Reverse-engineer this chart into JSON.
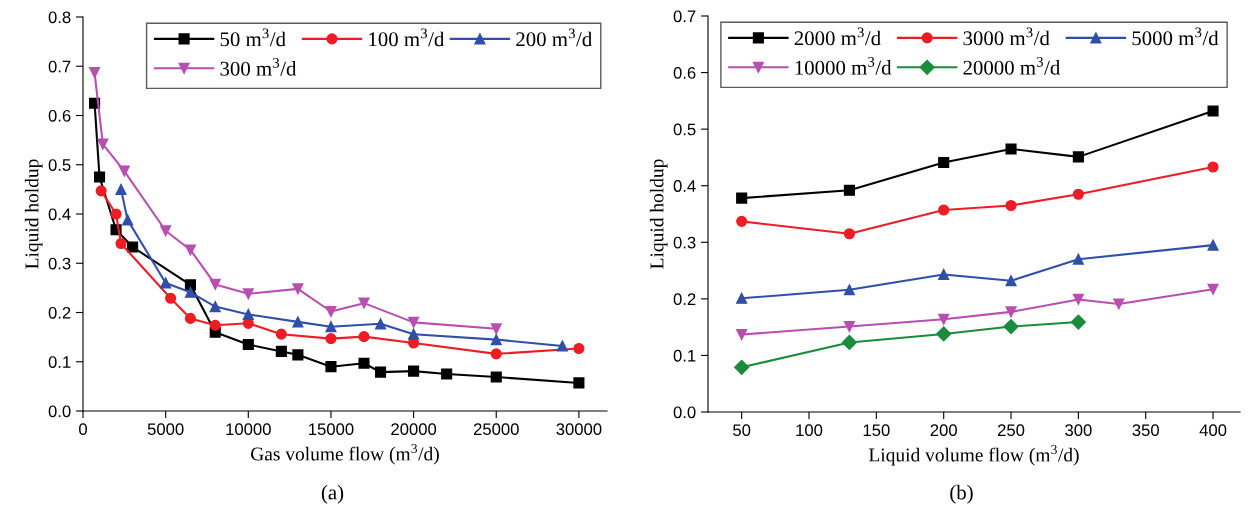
{
  "chart_data": [
    {
      "type": "line",
      "xlabel": "Gas volume flow (m$^{3}$/d)",
      "ylabel": "Liquid holdup",
      "xlim": [
        0,
        31700
      ],
      "xticks": [
        0,
        5000,
        10000,
        15000,
        20000,
        25000,
        30000
      ],
      "ylim": [
        0,
        0.8
      ],
      "yticks": [
        {
          "value": 0,
          "label": "0.0"
        },
        0.1,
        0.2,
        0.3,
        0.4,
        0.5,
        0.6,
        0.7,
        0.8
      ],
      "grid": false,
      "legend": "top right",
      "line_style": "solid",
      "annotations": [
        "(a)"
      ],
      "series": [
        {
          "name": "50 m$^{3}$/d",
          "color": "#000000",
          "marker": "square",
          "x": [
            700,
            1000,
            2000,
            3000,
            6500,
            8000,
            10000,
            12000,
            13000,
            15000,
            17000,
            18000,
            20000,
            22000,
            25000,
            30000
          ],
          "values": [
            0.625,
            0.475,
            0.368,
            0.333,
            0.256,
            0.16,
            0.135,
            0.121,
            0.114,
            0.09,
            0.097,
            0.079,
            0.081,
            0.075,
            0.069,
            0.057
          ]
        },
        {
          "name": "100 m$^{3}$/d",
          "color": "#ee1c25",
          "marker": "circle",
          "x": [
            1100,
            2000,
            2300,
            5300,
            6500,
            8000,
            10000,
            12000,
            15000,
            17000,
            20000,
            25000,
            30000
          ],
          "values": [
            0.447,
            0.4,
            0.34,
            0.229,
            0.188,
            0.174,
            0.178,
            0.156,
            0.147,
            0.151,
            0.138,
            0.116,
            0.127
          ]
        },
        {
          "name": "200 m$^{3}$/d",
          "color": "#3050a8",
          "marker": "triangle",
          "x": [
            2300,
            2700,
            5000,
            6500,
            8000,
            10000,
            13000,
            15000,
            18000,
            20000,
            25000,
            29000
          ],
          "values": [
            0.45,
            0.388,
            0.26,
            0.241,
            0.212,
            0.196,
            0.181,
            0.171,
            0.177,
            0.156,
            0.145,
            0.132
          ]
        },
        {
          "name": "300 m$^{3}$/d",
          "color": "#b84fb0",
          "marker": "triangle_down",
          "x": [
            700,
            1200,
            2500,
            5000,
            6500,
            8000,
            10000,
            13000,
            15000,
            17000,
            20000,
            25000
          ],
          "values": [
            0.687,
            0.542,
            0.487,
            0.366,
            0.327,
            0.257,
            0.238,
            0.248,
            0.202,
            0.219,
            0.18,
            0.167
          ]
        }
      ]
    },
    {
      "type": "line",
      "xlabel": "Liquid volume flow (m$^{3}$/d)",
      "ylabel": "Liquid holdup",
      "xlim": [
        25,
        420
      ],
      "xticks": [
        50,
        100,
        150,
        200,
        250,
        300,
        350,
        400
      ],
      "ylim": [
        0,
        0.7
      ],
      "yticks": [
        {
          "value": 0,
          "label": "0.0"
        },
        0.1,
        0.2,
        0.3,
        0.4,
        0.5,
        0.6,
        0.7
      ],
      "grid": false,
      "legend": "top",
      "line_style": "solid",
      "annotations": [
        "(b)"
      ],
      "series": [
        {
          "name": "2000 m$^{3}$/d",
          "color": "#000000",
          "marker": "square",
          "x": [
            50,
            130,
            200,
            250,
            300,
            400
          ],
          "values": [
            0.378,
            0.392,
            0.441,
            0.465,
            0.451,
            0.532
          ]
        },
        {
          "name": "3000 m$^{3}$/d",
          "color": "#ee1c25",
          "marker": "circle",
          "x": [
            50,
            130,
            200,
            250,
            300,
            400
          ],
          "values": [
            0.337,
            0.315,
            0.357,
            0.365,
            0.385,
            0.433
          ]
        },
        {
          "name": "5000 m$^{3}$/d",
          "color": "#3050a8",
          "marker": "triangle",
          "x": [
            50,
            130,
            200,
            250,
            300,
            400
          ],
          "values": [
            0.201,
            0.216,
            0.243,
            0.232,
            0.27,
            0.295
          ]
        },
        {
          "name": "10000 m$^{3}$/d",
          "color": "#b84fb0",
          "marker": "triangle_down",
          "x": [
            50,
            130,
            200,
            250,
            300,
            330,
            400
          ],
          "values": [
            0.137,
            0.151,
            0.164,
            0.177,
            0.199,
            0.191,
            0.217
          ]
        },
        {
          "name": "20000 m$^{3}$/d",
          "color": "#1a8c3c",
          "marker": "diamond",
          "x": [
            50,
            130,
            200,
            250,
            300
          ],
          "values": [
            0.079,
            0.123,
            0.138,
            0.151,
            0.159
          ]
        }
      ]
    }
  ]
}
